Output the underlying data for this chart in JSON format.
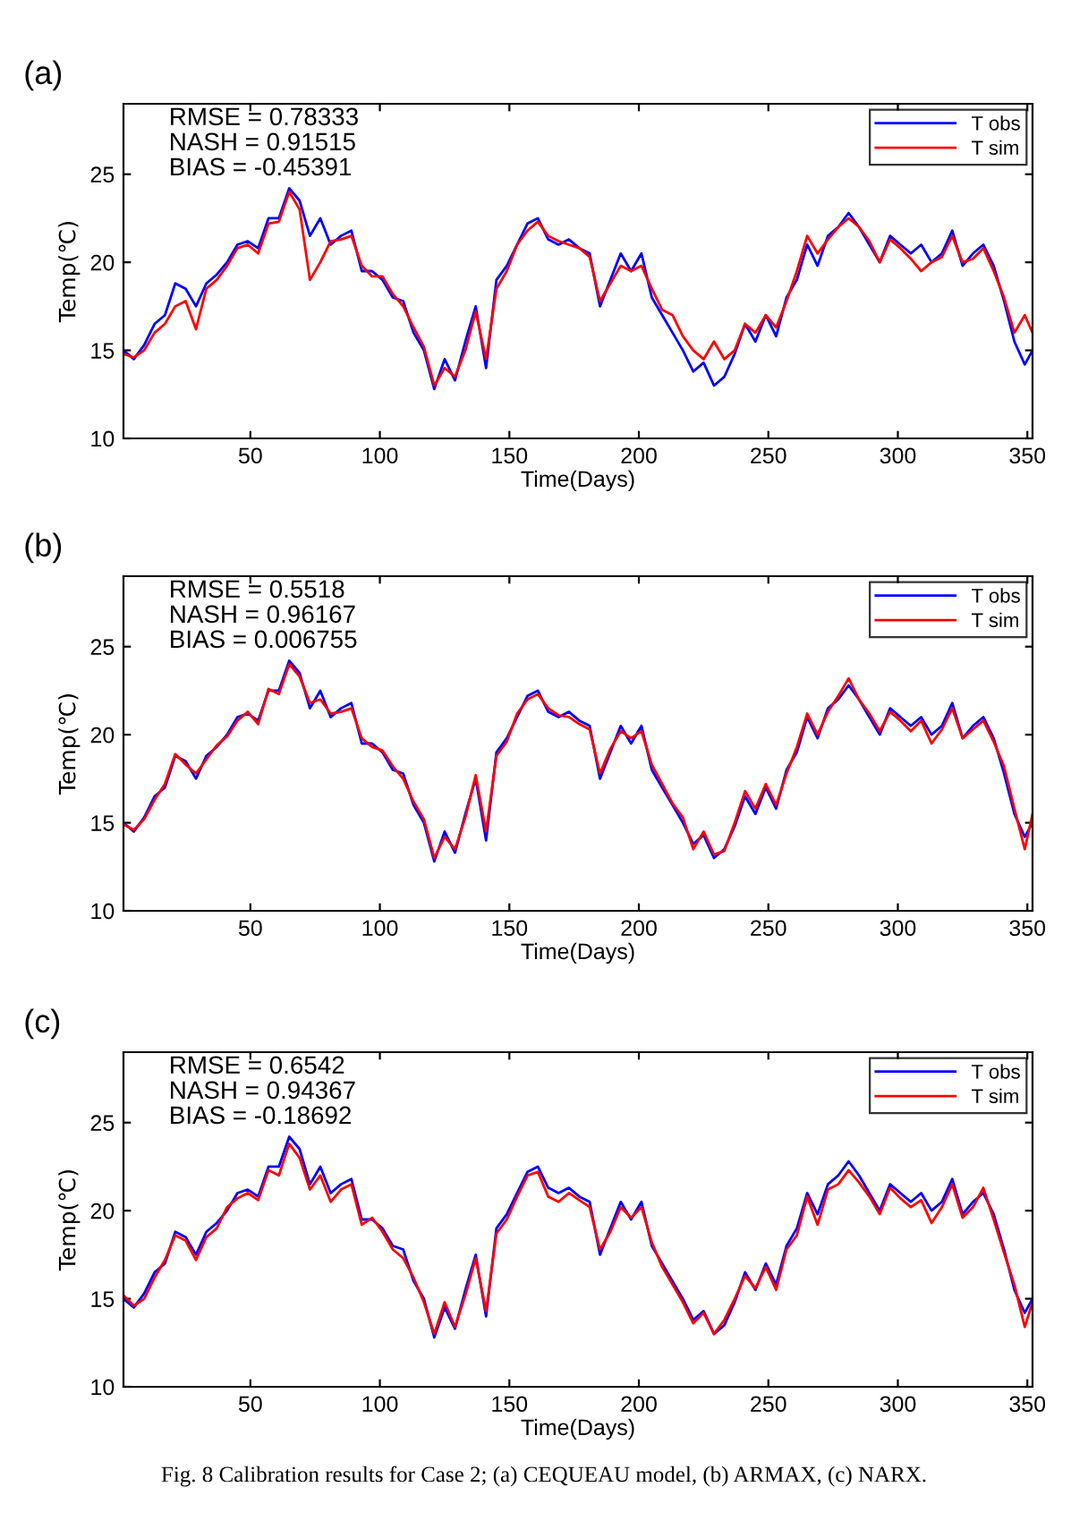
{
  "chart_data": [
    {
      "type": "line",
      "title": "(a)",
      "xlabel": "Time(Days)",
      "ylabel": "Temp(℃)",
      "x": [
        1,
        5,
        9,
        13,
        17,
        21,
        25,
        29,
        33,
        37,
        41,
        45,
        49,
        53,
        57,
        61,
        65,
        69,
        73,
        77,
        81,
        85,
        89,
        93,
        97,
        101,
        105,
        109,
        113,
        117,
        121,
        125,
        129,
        133,
        137,
        141,
        145,
        149,
        153,
        157,
        161,
        165,
        169,
        173,
        177,
        181,
        185,
        189,
        193,
        197,
        201,
        205,
        209,
        213,
        217,
        221,
        225,
        229,
        233,
        237,
        241,
        245,
        249,
        253,
        257,
        261,
        265,
        269,
        273,
        277,
        281,
        285,
        289,
        293,
        297,
        301,
        305,
        309,
        313,
        317,
        321,
        325,
        329,
        333,
        337,
        341,
        345,
        349,
        352
      ],
      "series": [
        {
          "name": "T obs",
          "color": "#0000ff",
          "values": [
            15.0,
            14.5,
            15.3,
            16.5,
            17.0,
            18.8,
            18.5,
            17.5,
            18.8,
            19.3,
            20.0,
            21.0,
            21.2,
            20.8,
            22.5,
            22.5,
            24.2,
            23.5,
            21.5,
            22.5,
            21.0,
            21.5,
            21.8,
            19.5,
            19.5,
            19.0,
            18.0,
            17.8,
            16.0,
            15.0,
            12.8,
            14.5,
            13.3,
            15.5,
            17.5,
            14.0,
            19.0,
            19.8,
            21.0,
            22.2,
            22.5,
            21.3,
            21.0,
            21.3,
            20.8,
            20.5,
            17.5,
            19.0,
            20.5,
            19.5,
            20.5,
            18.0,
            17.0,
            16.0,
            15.0,
            13.8,
            14.3,
            13.0,
            13.5,
            14.8,
            16.5,
            15.5,
            17.0,
            15.8,
            18.0,
            19.0,
            21.0,
            19.8,
            21.5,
            22.0,
            22.8,
            22.0,
            21.0,
            20.0,
            21.5,
            21.0,
            20.5,
            21.0,
            20.0,
            20.5,
            21.8,
            19.8,
            20.5,
            21.0,
            19.8,
            17.8,
            15.5,
            14.2,
            15.0
          ]
        },
        {
          "name": "T sim",
          "color": "#ff0000",
          "values": [
            14.8,
            14.6,
            15.0,
            16.0,
            16.5,
            17.5,
            17.8,
            16.2,
            18.5,
            19.0,
            19.8,
            20.8,
            21.0,
            20.5,
            22.2,
            22.3,
            24.0,
            23.0,
            19.0,
            20.0,
            21.2,
            21.3,
            21.5,
            19.8,
            19.2,
            19.2,
            18.2,
            17.5,
            16.3,
            15.2,
            13.0,
            14.0,
            13.5,
            15.0,
            17.2,
            14.5,
            18.5,
            19.5,
            21.0,
            21.8,
            22.3,
            21.5,
            21.2,
            21.0,
            20.8,
            20.3,
            17.8,
            18.8,
            19.8,
            19.5,
            19.8,
            18.5,
            17.3,
            17.0,
            15.8,
            15.0,
            14.5,
            15.5,
            14.5,
            15.0,
            16.5,
            16.0,
            17.0,
            16.3,
            17.8,
            19.5,
            21.5,
            20.5,
            21.3,
            22.0,
            22.5,
            22.0,
            21.2,
            20.0,
            21.3,
            20.8,
            20.2,
            19.5,
            20.0,
            20.3,
            21.5,
            20.0,
            20.2,
            20.8,
            19.5,
            18.0,
            16.0,
            17.0,
            16.0
          ]
        }
      ],
      "xlim": [
        1,
        352
      ],
      "ylim": [
        10,
        29
      ],
      "xticks": [
        50,
        100,
        150,
        200,
        250,
        300,
        350
      ],
      "yticks": [
        10,
        15,
        20,
        25
      ],
      "grid": false,
      "legend": "top right",
      "marker": "none",
      "line_style": "solid",
      "annotations": [
        "RMSE = 0.78333",
        "NASH = 0.91515",
        "BIAS = -0.45391"
      ]
    },
    {
      "type": "line",
      "title": "(b)",
      "xlabel": "Time(Days)",
      "ylabel": "Temp(℃)",
      "x": [
        1,
        5,
        9,
        13,
        17,
        21,
        25,
        29,
        33,
        37,
        41,
        45,
        49,
        53,
        57,
        61,
        65,
        69,
        73,
        77,
        81,
        85,
        89,
        93,
        97,
        101,
        105,
        109,
        113,
        117,
        121,
        125,
        129,
        133,
        137,
        141,
        145,
        149,
        153,
        157,
        161,
        165,
        169,
        173,
        177,
        181,
        185,
        189,
        193,
        197,
        201,
        205,
        209,
        213,
        217,
        221,
        225,
        229,
        233,
        237,
        241,
        245,
        249,
        253,
        257,
        261,
        265,
        269,
        273,
        277,
        281,
        285,
        289,
        293,
        297,
        301,
        305,
        309,
        313,
        317,
        321,
        325,
        329,
        333,
        337,
        341,
        345,
        349,
        352
      ],
      "series": [
        {
          "name": "T obs",
          "color": "#0000ff",
          "values": [
            15.0,
            14.5,
            15.3,
            16.5,
            17.0,
            18.8,
            18.5,
            17.5,
            18.8,
            19.3,
            20.0,
            21.0,
            21.2,
            20.8,
            22.5,
            22.5,
            24.2,
            23.5,
            21.5,
            22.5,
            21.0,
            21.5,
            21.8,
            19.5,
            19.5,
            19.0,
            18.0,
            17.8,
            16.0,
            15.0,
            12.8,
            14.5,
            13.3,
            15.5,
            17.5,
            14.0,
            19.0,
            19.8,
            21.0,
            22.2,
            22.5,
            21.3,
            21.0,
            21.3,
            20.8,
            20.5,
            17.5,
            19.0,
            20.5,
            19.5,
            20.5,
            18.0,
            17.0,
            16.0,
            15.0,
            13.8,
            14.3,
            13.0,
            13.5,
            14.8,
            16.5,
            15.5,
            17.0,
            15.8,
            18.0,
            19.0,
            21.0,
            19.8,
            21.5,
            22.0,
            22.8,
            22.0,
            21.0,
            20.0,
            21.5,
            21.0,
            20.5,
            21.0,
            20.0,
            20.5,
            21.8,
            19.8,
            20.5,
            21.0,
            19.8,
            17.8,
            15.5,
            14.2,
            15.0
          ]
        },
        {
          "name": "T sim",
          "color": "#ff0000",
          "values": [
            14.9,
            14.6,
            15.2,
            16.3,
            17.2,
            18.9,
            18.3,
            17.8,
            18.6,
            19.4,
            19.9,
            20.8,
            21.3,
            20.6,
            22.6,
            22.3,
            24.0,
            23.3,
            21.8,
            22.0,
            21.2,
            21.3,
            21.5,
            19.8,
            19.3,
            19.1,
            18.2,
            17.5,
            16.2,
            15.2,
            13.0,
            14.2,
            13.5,
            15.3,
            17.7,
            14.5,
            18.8,
            19.6,
            21.2,
            22.0,
            22.3,
            21.5,
            21.1,
            21.0,
            20.6,
            20.3,
            17.8,
            19.2,
            20.2,
            19.8,
            20.2,
            18.3,
            17.2,
            16.1,
            15.3,
            13.5,
            14.5,
            13.2,
            13.4,
            15.0,
            16.8,
            15.8,
            17.2,
            16.0,
            17.8,
            19.3,
            21.2,
            20.0,
            21.3,
            22.2,
            23.2,
            22.0,
            21.2,
            20.2,
            21.3,
            20.8,
            20.2,
            20.8,
            19.5,
            20.3,
            21.5,
            19.8,
            20.3,
            20.8,
            19.6,
            18.2,
            15.8,
            13.5,
            15.5
          ]
        }
      ],
      "xlim": [
        1,
        352
      ],
      "ylim": [
        10,
        29
      ],
      "xticks": [
        50,
        100,
        150,
        200,
        250,
        300,
        350
      ],
      "yticks": [
        10,
        15,
        20,
        25
      ],
      "grid": false,
      "legend": "top right",
      "marker": "none",
      "line_style": "solid",
      "annotations": [
        "RMSE = 0.5518",
        "NASH = 0.96167",
        "BIAS = 0.006755"
      ]
    },
    {
      "type": "line",
      "title": "(c)",
      "xlabel": "Time(Days)",
      "ylabel": "Temp(℃)",
      "x": [
        1,
        5,
        9,
        13,
        17,
        21,
        25,
        29,
        33,
        37,
        41,
        45,
        49,
        53,
        57,
        61,
        65,
        69,
        73,
        77,
        81,
        85,
        89,
        93,
        97,
        101,
        105,
        109,
        113,
        117,
        121,
        125,
        129,
        133,
        137,
        141,
        145,
        149,
        153,
        157,
        161,
        165,
        169,
        173,
        177,
        181,
        185,
        189,
        193,
        197,
        201,
        205,
        209,
        213,
        217,
        221,
        225,
        229,
        233,
        237,
        241,
        245,
        249,
        253,
        257,
        261,
        265,
        269,
        273,
        277,
        281,
        285,
        289,
        293,
        297,
        301,
        305,
        309,
        313,
        317,
        321,
        325,
        329,
        333,
        337,
        341,
        345,
        349,
        352
      ],
      "series": [
        {
          "name": "T obs",
          "color": "#0000ff",
          "values": [
            15.0,
            14.5,
            15.3,
            16.5,
            17.0,
            18.8,
            18.5,
            17.5,
            18.8,
            19.3,
            20.0,
            21.0,
            21.2,
            20.8,
            22.5,
            22.5,
            24.2,
            23.5,
            21.5,
            22.5,
            21.0,
            21.5,
            21.8,
            19.5,
            19.5,
            19.0,
            18.0,
            17.8,
            16.0,
            15.0,
            12.8,
            14.5,
            13.3,
            15.5,
            17.5,
            14.0,
            19.0,
            19.8,
            21.0,
            22.2,
            22.5,
            21.3,
            21.0,
            21.3,
            20.8,
            20.5,
            17.5,
            19.0,
            20.5,
            19.5,
            20.5,
            18.0,
            17.0,
            16.0,
            15.0,
            13.8,
            14.3,
            13.0,
            13.5,
            14.8,
            16.5,
            15.5,
            17.0,
            15.8,
            18.0,
            19.0,
            21.0,
            19.8,
            21.5,
            22.0,
            22.8,
            22.0,
            21.0,
            20.0,
            21.5,
            21.0,
            20.5,
            21.0,
            20.0,
            20.5,
            21.8,
            19.8,
            20.5,
            21.0,
            19.8,
            17.8,
            15.5,
            14.2,
            15.0
          ]
        },
        {
          "name": "T sim",
          "color": "#ff0000",
          "values": [
            15.2,
            14.6,
            15.0,
            16.2,
            17.2,
            18.6,
            18.3,
            17.2,
            18.5,
            19.0,
            20.2,
            20.7,
            21.0,
            20.6,
            22.3,
            22.0,
            23.8,
            23.0,
            21.2,
            22.0,
            20.5,
            21.2,
            21.5,
            19.2,
            19.6,
            18.8,
            17.8,
            17.3,
            16.2,
            14.8,
            13.0,
            14.8,
            13.4,
            15.2,
            17.3,
            14.3,
            18.7,
            19.5,
            20.8,
            22.0,
            22.2,
            20.8,
            20.5,
            21.0,
            20.6,
            20.2,
            17.8,
            18.8,
            20.2,
            19.6,
            20.2,
            18.2,
            16.8,
            15.8,
            14.8,
            13.6,
            14.2,
            13.0,
            13.8,
            15.0,
            16.3,
            15.6,
            16.8,
            15.5,
            17.8,
            18.6,
            20.8,
            19.2,
            21.2,
            21.5,
            22.3,
            21.6,
            20.8,
            19.8,
            21.3,
            20.7,
            20.2,
            20.6,
            19.3,
            20.2,
            21.5,
            19.6,
            20.2,
            21.3,
            19.5,
            17.6,
            15.8,
            13.4,
            14.8
          ]
        }
      ],
      "xlim": [
        1,
        352
      ],
      "ylim": [
        10,
        29
      ],
      "xticks": [
        50,
        100,
        150,
        200,
        250,
        300,
        350
      ],
      "yticks": [
        10,
        15,
        20,
        25
      ],
      "grid": false,
      "legend": "top right",
      "marker": "none",
      "line_style": "solid",
      "annotations": [
        "RMSE = 0.6542",
        "NASH = 0.94367",
        "BIAS = -0.18692",
        "Fig. 8 Calibration results for Case 2; (a) CEQUEAU model, (b) ARMAX, (c) NARX."
      ]
    }
  ]
}
